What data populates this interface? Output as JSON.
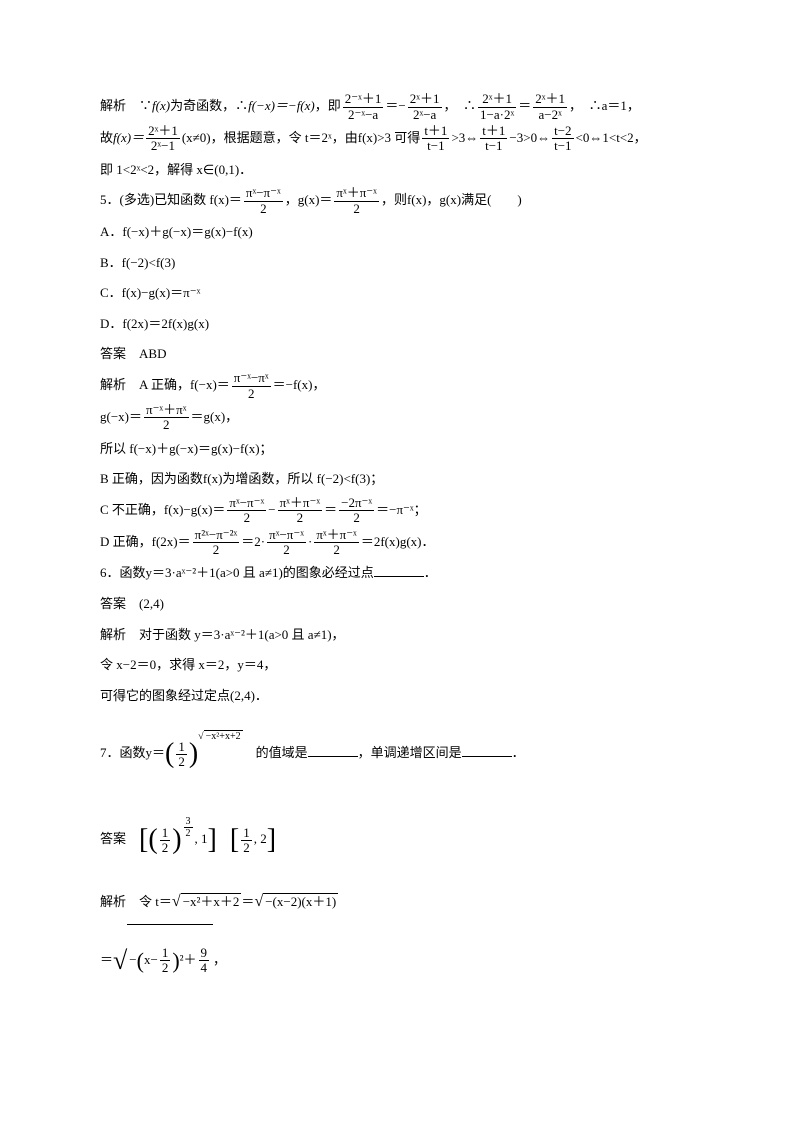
{
  "p1": {
    "label1": "解析",
    "text1": "∵",
    "fx": "f(x)",
    "text2": "为奇函数，∴",
    "fnx": "f(−x)＝−f(x)",
    "text3": "，即",
    "eq": "＝−",
    "comma": "，",
    "therefore": "∴",
    "eq2": "＝",
    "result": "∴a＝1，",
    "frac1n": "2⁻ˣ＋1",
    "frac1d": "2⁻ˣ−a",
    "frac2n": "2ˣ＋1",
    "frac2d": "2ˣ−a",
    "frac3n": "2ˣ＋1",
    "frac3d": "1−a·2ˣ",
    "frac4n": "2ˣ＋1",
    "frac4d": "a−2ˣ"
  },
  "p2": {
    "text1": "故",
    "fx": "f(x)＝",
    "fracn": "2ˣ＋1",
    "fracd": "2ˣ−1",
    "cond": "(x≠0)，根据题意，令 t＝2ˣ，由f(x)>3 可得",
    "f2n": "t＋1",
    "f2d": "t−1",
    "gt": ">3⇔",
    "f3n": "t＋1",
    "f3d": "t−1",
    "m3": "−3>0⇔",
    "f4n": "t−2",
    "f4d": "t−1",
    "end": "<0⇔1<t<2，"
  },
  "p3": "即 1<2ˣ<2，解得 x∈(0,1)．",
  "q5": {
    "label": "5．(多选)已知函数 f(x)＝",
    "f1n": "πˣ−π⁻ˣ",
    "f1d": "2",
    "mid": "，g(x)＝",
    "f2n": "πˣ＋π⁻ˣ",
    "f2d": "2",
    "end": "，则f(x)，g(x)满足(　　)"
  },
  "optA": "A．f(−x)＋g(−x)＝g(x)−f(x)",
  "optB": "B．f(−2)<f(3)",
  "optC": "C．f(x)−g(x)＝π⁻ˣ",
  "optD": "D．f(2x)＝2f(x)g(x)",
  "ans5l": "答案",
  "ans5": "ABD",
  "exp5a": {
    "label": "解析",
    "text": "A 正确，f(−x)＝",
    "fn": "π⁻ˣ−πˣ",
    "fd": "2",
    "end": "＝−f(x)，"
  },
  "exp5g": {
    "text": "g(−x)＝",
    "fn": "π⁻ˣ＋πˣ",
    "fd": "2",
    "end": "＝g(x)，"
  },
  "exp5so": "所以 f(−x)＋g(−x)＝g(x)−f(x)；",
  "exp5b": "B 正确，因为函数f(x)为增函数，所以 f(−2)<f(3)；",
  "exp5c": {
    "text": "C 不正确，f(x)−g(x)＝",
    "f1n": "πˣ−π⁻ˣ",
    "f1d": "2",
    "minus": "−",
    "f2n": "πˣ＋π⁻ˣ",
    "f2d": "2",
    "eq": "＝",
    "f3n": "−2π⁻ˣ",
    "f3d": "2",
    "end": "＝−π⁻ˣ；"
  },
  "exp5d": {
    "text": "D 正确，f(2x)＝",
    "f1n": "π²ˣ−π⁻²ˣ",
    "f1d": "2",
    "eq1": "＝2·",
    "f2n": "πˣ−π⁻ˣ",
    "f2d": "2",
    "dot": "·",
    "f3n": "πˣ＋π⁻ˣ",
    "f3d": "2",
    "end": "＝2f(x)g(x)．"
  },
  "q6": "6．函数y＝3·aˣ⁻²＋1(a>0 且 a≠1)的图象必经过点",
  "q6end": "．",
  "ans6l": "答案",
  "ans6": "(2,4)",
  "exp6a": "解析　对于函数 y＝3·aˣ⁻²＋1(a>0 且 a≠1)，",
  "exp6b": "令 x−2＝0，求得 x＝2，y＝4，",
  "exp6c": "可得它的图象经过定点(2,4)．",
  "q7": {
    "label": "7．函数y＝",
    "base1": "1",
    "base2": "2",
    "exp": "−x²+x+2",
    "mid": "的值域是",
    "mid2": "，单调递增区间是",
    "end": "．"
  },
  "ans7l": "答案",
  "ans7a": {
    "f1": "1",
    "f2": "2",
    "exp": "3",
    "expd": "2",
    "one": ", 1"
  },
  "ans7b": {
    "f1": "1",
    "f2": "2",
    "two": ", 2"
  },
  "exp7a": {
    "label": "解析",
    "text": "令 t＝",
    "sq1": "−x²＋x＋2",
    "eq": "＝",
    "sq2": "−(x−2)(x＋1)"
  },
  "exp7b": {
    "eq": "＝",
    "inner1": "x−",
    "f1": "1",
    "f2": "2",
    "sq": "²＋",
    "f3": "9",
    "f4": "4",
    "end": "，"
  }
}
